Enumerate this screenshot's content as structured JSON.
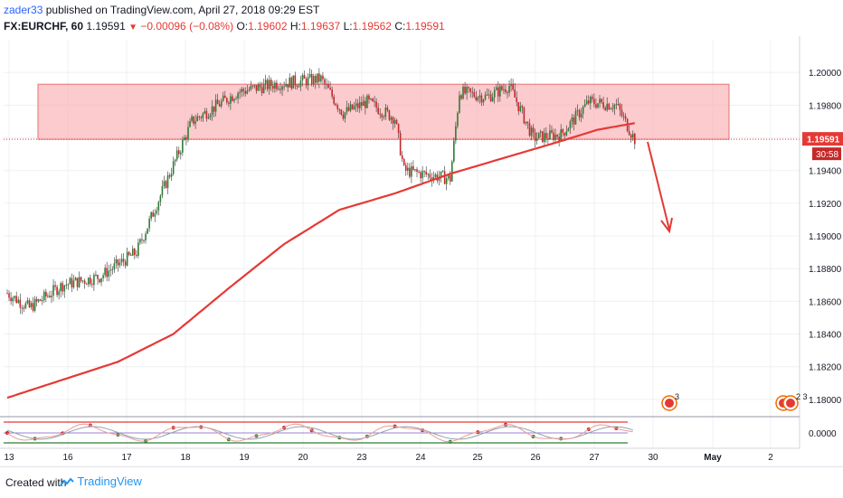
{
  "header": {
    "publisher": "zader33",
    "published_text": "published on TradingView.com, April 27, 2018 09:29 EST",
    "symbol": "FX:EURCHF, 60",
    "last": "1.19591",
    "change": "−0.00096 (−0.08%)",
    "open_label": "O:",
    "open": "1.19602",
    "high_label": "H:",
    "high": "1.19637",
    "low_label": "L:",
    "low": "1.19562",
    "close_label": "C:",
    "close": "1.19591"
  },
  "footer": {
    "created_with": "Created with",
    "brand": "TradingView"
  },
  "colors": {
    "up": "#2e7d32",
    "down": "#c62828",
    "ma": "#e53935",
    "zone": "#f8a9ad",
    "arrow": "#e53935"
  },
  "chart_data": {
    "type": "candlestick",
    "price_axis_labels": [
      "1.20000",
      "1.19800",
      "1.19600",
      "1.19400",
      "1.19200",
      "1.19000",
      "1.18800",
      "1.18600",
      "1.18400",
      "1.18200",
      "1.18000"
    ],
    "price_range": [
      1.179,
      1.202
    ],
    "current_price_label": "1.19591",
    "countdown_label": "30:58",
    "indicator_axis_label": "0.0000",
    "x_axis_labels": [
      "13",
      "16",
      "17",
      "18",
      "19",
      "20",
      "23",
      "24",
      "25",
      "26",
      "27",
      "30",
      "May",
      "2"
    ],
    "resistance_zone": {
      "low": 1.19591,
      "high": 1.19928
    },
    "moving_average": [
      {
        "i": 0,
        "v": 1.1801
      },
      {
        "i": 30,
        "v": 1.1812
      },
      {
        "i": 60,
        "v": 1.1823
      },
      {
        "i": 90,
        "v": 1.184
      },
      {
        "i": 120,
        "v": 1.1868
      },
      {
        "i": 150,
        "v": 1.1895
      },
      {
        "i": 180,
        "v": 1.1916
      },
      {
        "i": 210,
        "v": 1.1926
      },
      {
        "i": 240,
        "v": 1.1938
      },
      {
        "i": 270,
        "v": 1.1948
      },
      {
        "i": 300,
        "v": 1.1958
      },
      {
        "i": 320,
        "v": 1.1965
      },
      {
        "i": 340,
        "v": 1.1969
      }
    ],
    "price_path": [
      {
        "i": 0,
        "v": 1.1865
      },
      {
        "i": 12,
        "v": 1.1856
      },
      {
        "i": 30,
        "v": 1.187
      },
      {
        "i": 50,
        "v": 1.1875
      },
      {
        "i": 70,
        "v": 1.189
      },
      {
        "i": 85,
        "v": 1.193
      },
      {
        "i": 100,
        "v": 1.197
      },
      {
        "i": 125,
        "v": 1.1988
      },
      {
        "i": 145,
        "v": 1.1993
      },
      {
        "i": 170,
        "v": 1.1996
      },
      {
        "i": 182,
        "v": 1.1975
      },
      {
        "i": 195,
        "v": 1.1982
      },
      {
        "i": 210,
        "v": 1.1972
      },
      {
        "i": 215,
        "v": 1.194
      },
      {
        "i": 240,
        "v": 1.1935
      },
      {
        "i": 245,
        "v": 1.1988
      },
      {
        "i": 260,
        "v": 1.1985
      },
      {
        "i": 272,
        "v": 1.1992
      },
      {
        "i": 285,
        "v": 1.196
      },
      {
        "i": 300,
        "v": 1.1962
      },
      {
        "i": 315,
        "v": 1.1982
      },
      {
        "i": 330,
        "v": 1.198
      },
      {
        "i": 340,
        "v": 1.19591
      }
    ],
    "event_markers": [
      {
        "label": "3",
        "icons": 1
      },
      {
        "label": "2 3",
        "icons": 2
      }
    ]
  }
}
